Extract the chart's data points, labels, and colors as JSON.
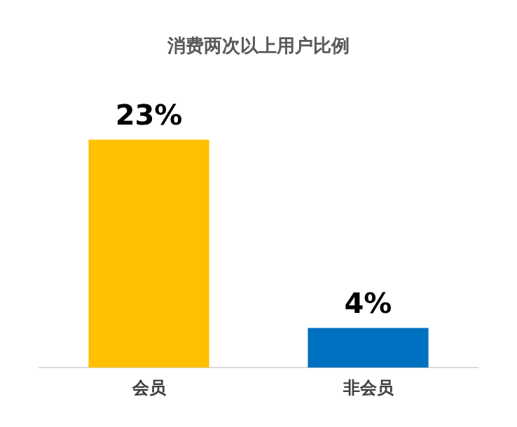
{
  "chart_data": {
    "type": "bar",
    "title": "消费两次以上用户比例",
    "categories": [
      "会员",
      "非会员"
    ],
    "values": [
      23,
      4
    ],
    "colors": [
      "#ffc000",
      "#0070c0"
    ],
    "value_labels": [
      "23%",
      "4%"
    ],
    "grid": false,
    "legend": false
  }
}
